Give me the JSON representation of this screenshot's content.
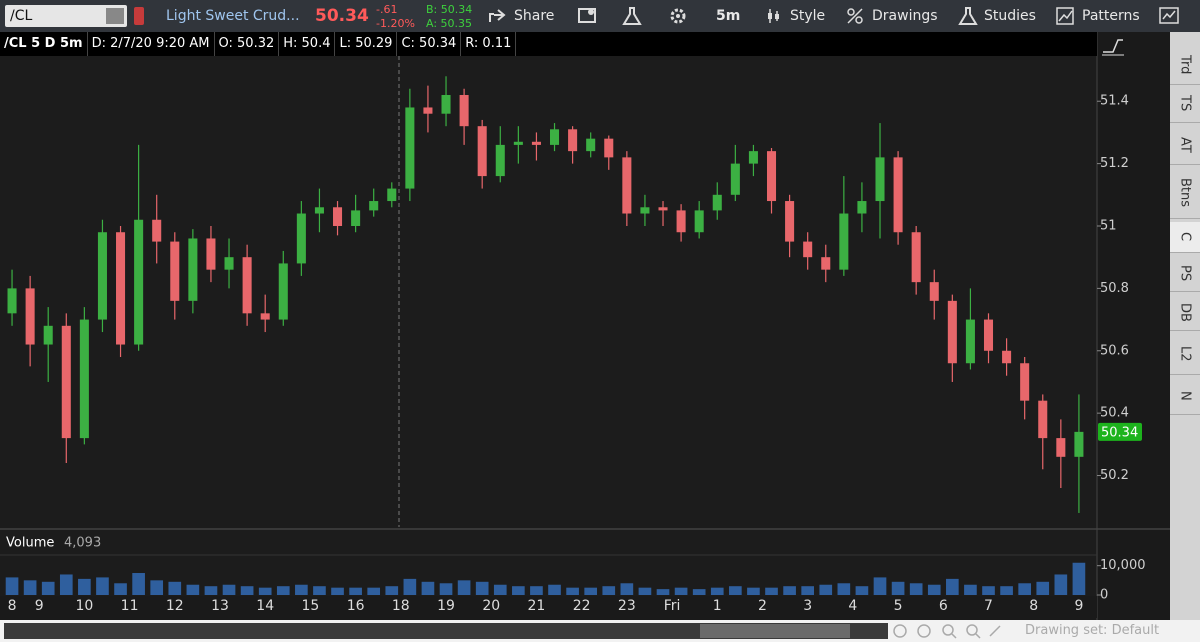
{
  "toolbar": {
    "symbol": "/CL",
    "description": "Light Sweet Crud...",
    "last": "50.34",
    "change": "-.61",
    "change_pct": "-1.20%",
    "bid": "B: 50.34",
    "ask": "A: 50.35",
    "share": "Share",
    "timeframe": "5m",
    "style": "Style",
    "drawings": "Drawings",
    "studies": "Studies",
    "patterns": "Patterns"
  },
  "info_bar": [
    "/CL 5 D 5m",
    "D: 2/7/20 9:20 AM",
    "O: 50.32",
    "H: 50.4",
    "L: 50.29",
    "C: 50.34",
    "R: 0.11"
  ],
  "sidebar_tabs": [
    "Trd",
    "TS",
    "AT",
    "Btns",
    "C",
    "PS",
    "DB",
    "L2",
    "N"
  ],
  "footer": {
    "drawing_set": "Drawing set: Default"
  },
  "chart_data": {
    "type": "candlestick",
    "x": [
      0.4,
      0.8,
      1.2,
      1.6,
      2,
      2.4,
      2.8,
      3.2,
      3.6,
      4,
      4.4,
      4.8,
      5.2,
      5.6,
      6,
      6.4,
      6.8,
      7.2,
      7.6,
      8,
      8.4,
      8.8,
      9.2,
      9.6,
      10,
      10.4,
      10.8,
      11.2,
      11.6,
      12,
      12.4,
      12.8,
      13.2,
      13.6,
      14,
      14.4,
      14.8,
      15.2,
      15.6,
      16,
      16.4,
      16.8,
      17.2,
      17.6,
      18,
      18.4,
      18.8,
      19.2,
      19.6,
      20,
      20.4,
      20.8,
      21.2,
      21.6,
      22,
      22.4,
      22.8,
      23.2,
      23.6,
      24
    ],
    "ohlc": [
      [
        50.72,
        50.86,
        50.68,
        50.8
      ],
      [
        50.8,
        50.84,
        50.55,
        50.62
      ],
      [
        50.62,
        50.74,
        50.5,
        50.68
      ],
      [
        50.68,
        50.72,
        50.24,
        50.32
      ],
      [
        50.32,
        50.74,
        50.3,
        50.7
      ],
      [
        50.7,
        51.02,
        50.66,
        50.98
      ],
      [
        50.98,
        51,
        50.58,
        50.62
      ],
      [
        50.62,
        51.26,
        50.6,
        51.02
      ],
      [
        51.02,
        51.1,
        50.88,
        50.95
      ],
      [
        50.95,
        50.98,
        50.7,
        50.76
      ],
      [
        50.76,
        50.99,
        50.72,
        50.96
      ],
      [
        50.96,
        51,
        50.82,
        50.86
      ],
      [
        50.86,
        50.96,
        50.8,
        50.9
      ],
      [
        50.9,
        50.94,
        50.68,
        50.72
      ],
      [
        50.72,
        50.78,
        50.66,
        50.7
      ],
      [
        50.7,
        50.92,
        50.68,
        50.88
      ],
      [
        50.88,
        51.08,
        50.84,
        51.04
      ],
      [
        51.04,
        51.12,
        50.98,
        51.06
      ],
      [
        51.06,
        51.08,
        50.97,
        51
      ],
      [
        51,
        51.1,
        50.98,
        51.05
      ],
      [
        51.05,
        51.12,
        51.03,
        51.08
      ],
      [
        51.08,
        51.14,
        51.06,
        51.12
      ],
      [
        51.12,
        51.44,
        51.08,
        51.38
      ],
      [
        51.38,
        51.45,
        51.3,
        51.36
      ],
      [
        51.36,
        51.48,
        51.32,
        51.42
      ],
      [
        51.42,
        51.44,
        51.26,
        51.32
      ],
      [
        51.32,
        51.34,
        51.12,
        51.16
      ],
      [
        51.16,
        51.32,
        51.14,
        51.26
      ],
      [
        51.26,
        51.32,
        51.2,
        51.27
      ],
      [
        51.27,
        51.3,
        51.21,
        51.26
      ],
      [
        51.26,
        51.33,
        51.24,
        51.31
      ],
      [
        51.31,
        51.32,
        51.2,
        51.24
      ],
      [
        51.24,
        51.3,
        51.22,
        51.28
      ],
      [
        51.28,
        51.29,
        51.18,
        51.22
      ],
      [
        51.22,
        51.24,
        51,
        51.04
      ],
      [
        51.04,
        51.1,
        51,
        51.06
      ],
      [
        51.06,
        51.08,
        51,
        51.05
      ],
      [
        51.05,
        51.07,
        50.95,
        50.98
      ],
      [
        50.98,
        51.08,
        50.96,
        51.05
      ],
      [
        51.05,
        51.14,
        51.02,
        51.1
      ],
      [
        51.1,
        51.26,
        51.08,
        51.2
      ],
      [
        51.2,
        51.26,
        51.16,
        51.24
      ],
      [
        51.24,
        51.25,
        51.04,
        51.08
      ],
      [
        51.08,
        51.1,
        50.9,
        50.95
      ],
      [
        50.95,
        50.98,
        50.86,
        50.9
      ],
      [
        50.9,
        50.94,
        50.82,
        50.86
      ],
      [
        50.86,
        51.16,
        50.84,
        51.04
      ],
      [
        51.04,
        51.14,
        50.98,
        51.08
      ],
      [
        51.08,
        51.33,
        50.96,
        51.22
      ],
      [
        51.22,
        51.24,
        50.94,
        50.98
      ],
      [
        50.98,
        51,
        50.78,
        50.82
      ],
      [
        50.82,
        50.86,
        50.7,
        50.76
      ],
      [
        50.76,
        50.78,
        50.5,
        50.56
      ],
      [
        50.56,
        50.8,
        50.54,
        50.7
      ],
      [
        50.7,
        50.72,
        50.56,
        50.6
      ],
      [
        50.6,
        50.64,
        50.52,
        50.56
      ],
      [
        50.56,
        50.58,
        50.38,
        50.44
      ],
      [
        50.44,
        50.46,
        50.22,
        50.32
      ],
      [
        50.32,
        50.38,
        50.16,
        50.26
      ],
      [
        50.26,
        50.46,
        50.08,
        50.34
      ]
    ],
    "up_color": "#3cb043",
    "down_color": "#e8676b",
    "xlim": [
      0.2,
      24.4
    ],
    "ylim": [
      50.035,
      51.545
    ],
    "yticks": [
      50.2,
      50.4,
      50.6,
      50.8,
      51,
      51.2,
      51.4
    ],
    "xticks": [
      {
        "value": 0.4,
        "label": "8"
      },
      {
        "value": 1,
        "label": "9"
      },
      {
        "value": 2,
        "label": "10"
      },
      {
        "value": 3,
        "label": "11"
      },
      {
        "value": 4,
        "label": "12"
      },
      {
        "value": 5,
        "label": "13"
      },
      {
        "value": 6,
        "label": "14"
      },
      {
        "value": 7,
        "label": "15"
      },
      {
        "value": 8,
        "label": "16"
      },
      {
        "value": 9,
        "label": "18"
      },
      {
        "value": 10,
        "label": "19"
      },
      {
        "value": 11,
        "label": "20"
      },
      {
        "value": 12,
        "label": "21"
      },
      {
        "value": 13,
        "label": "22"
      },
      {
        "value": 14,
        "label": "23"
      },
      {
        "value": 15,
        "label": "Fri"
      },
      {
        "value": 16,
        "label": "1"
      },
      {
        "value": 17,
        "label": "2"
      },
      {
        "value": 18,
        "label": "3"
      },
      {
        "value": 19,
        "label": "4"
      },
      {
        "value": 20,
        "label": "5"
      },
      {
        "value": 21,
        "label": "6"
      },
      {
        "value": 22,
        "label": "7"
      },
      {
        "value": 23,
        "label": "8"
      },
      {
        "value": 24,
        "label": "9"
      }
    ],
    "last_price": 50.34,
    "last_price_color": "#1db31d",
    "volume": {
      "label": "Volume",
      "current": {
        "value": 4093,
        "label": "4,093"
      },
      "color": "#2f5f9e",
      "values": [
        6000,
        5000,
        4500,
        7000,
        5500,
        6000,
        4000,
        7500,
        5000,
        4500,
        3500,
        3000,
        3500,
        3000,
        2500,
        3000,
        3500,
        3000,
        2500,
        2500,
        2500,
        3000,
        5500,
        4500,
        4000,
        5000,
        4500,
        3500,
        3000,
        3000,
        3500,
        2500,
        2500,
        3000,
        4000,
        2500,
        2000,
        2500,
        2000,
        2500,
        3000,
        2500,
        2500,
        3000,
        3000,
        3500,
        4000,
        3000,
        6000,
        4500,
        4000,
        3500,
        5500,
        3500,
        3000,
        3000,
        4000,
        4500,
        7000,
        11000
      ],
      "ylim": [
        0,
        13300
      ],
      "yticks": [
        0,
        {
          "value": 10000,
          "label": "10,000"
        }
      ]
    }
  }
}
